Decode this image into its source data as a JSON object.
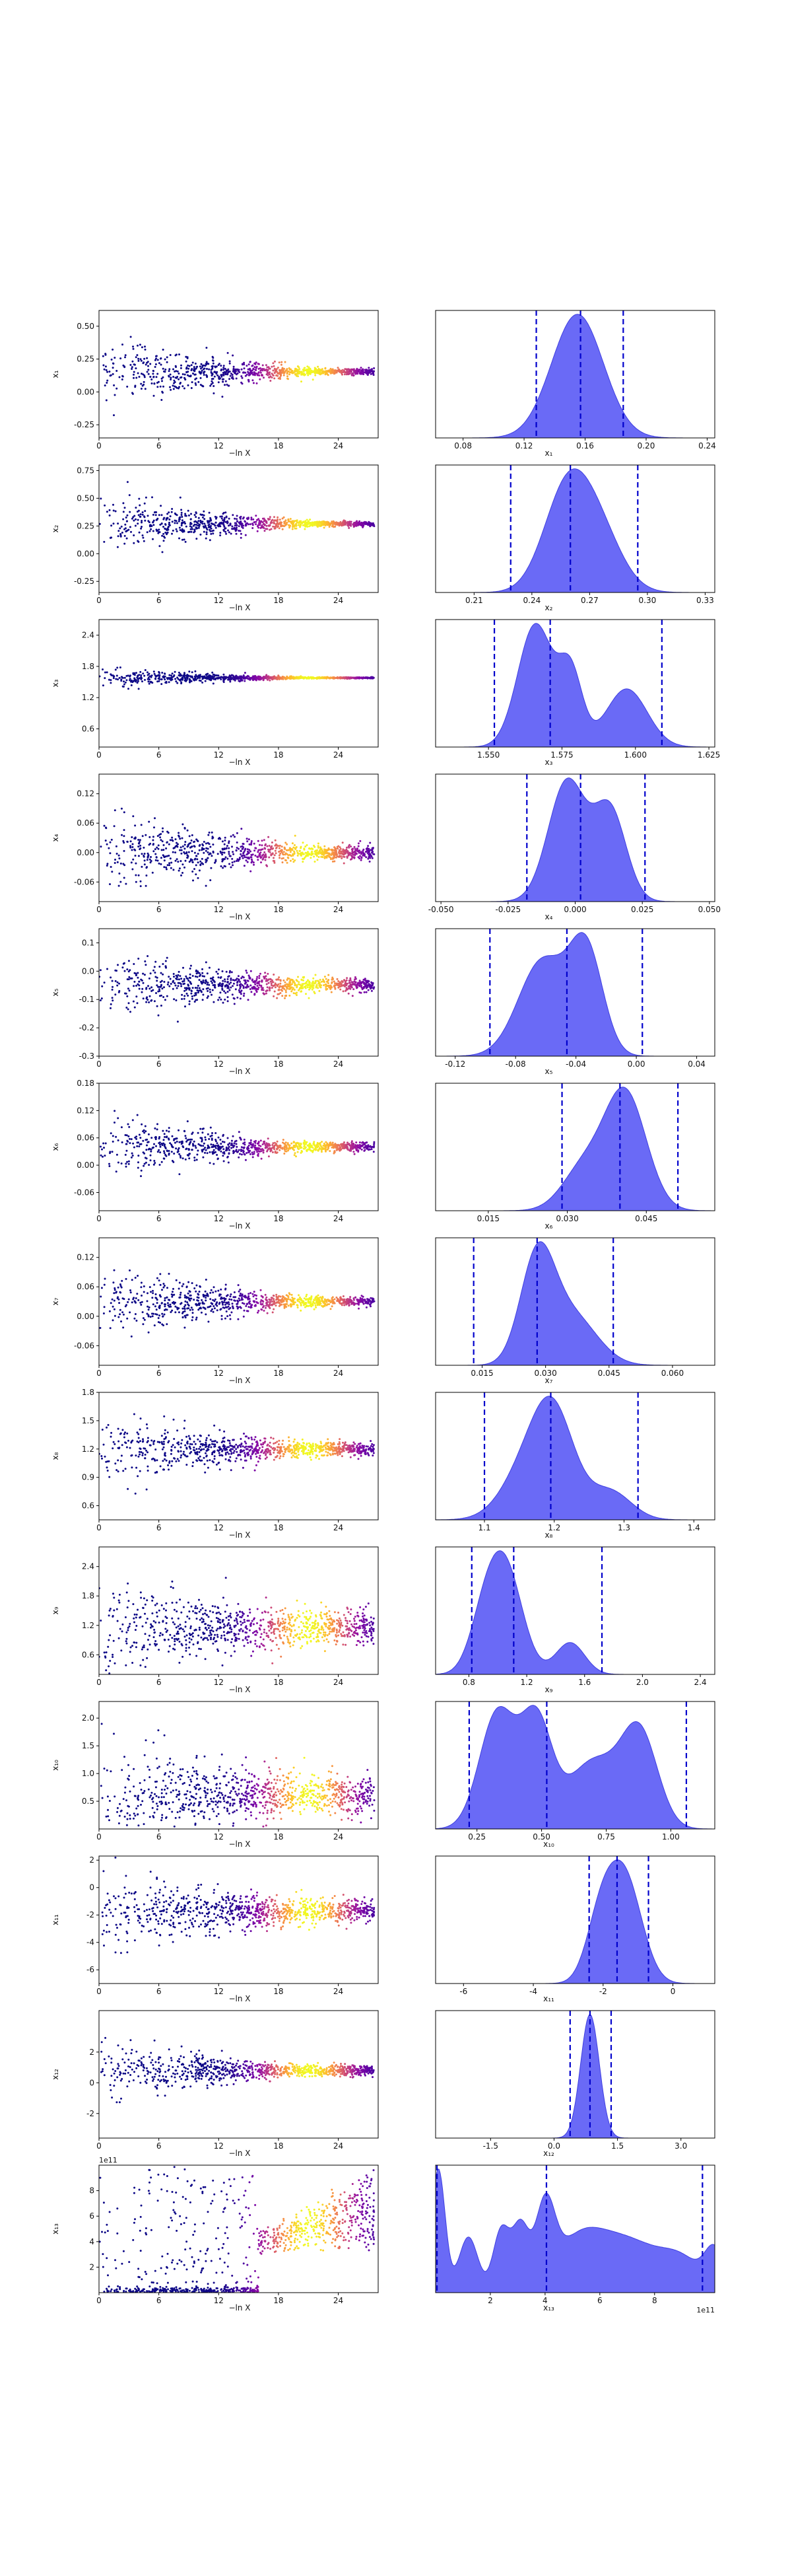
{
  "chart_data": {
    "type": "scatter",
    "trace_xlabel": "−ln X",
    "trace_xticks": [
      0,
      6,
      12,
      18,
      24
    ],
    "trace_xlim": [
      0,
      28
    ],
    "colormap": "plasma",
    "kde_fill_color": "#5a5af5",
    "quantile_line_color": "#0000cc",
    "panels": [
      {
        "param": "x1",
        "trace_ylabel": "x₁",
        "trace_yticks": [
          "-0.25",
          "0.00",
          "0.25",
          "0.50"
        ],
        "trace_ylim": [
          -0.35,
          0.62
        ],
        "center": 0.155,
        "width0": 0.2,
        "width_end": 0.02,
        "kde_xlabel": "x₁",
        "kde_xticks": [
          "0.08",
          "0.12",
          "0.16",
          "0.20",
          "0.24"
        ],
        "kde_xlim": [
          0.062,
          0.245
        ],
        "kde_peaks": [
          [
            0.155,
            0.017,
            1.0
          ]
        ],
        "quantiles": [
          0.128,
          0.157,
          0.185
        ]
      },
      {
        "param": "x2",
        "trace_ylabel": "x₂",
        "trace_yticks": [
          "-0.25",
          "0.00",
          "0.25",
          "0.50",
          "0.75"
        ],
        "trace_ylim": [
          -0.35,
          0.8
        ],
        "center": 0.27,
        "width0": 0.2,
        "width_end": 0.02,
        "kde_xlabel": "x₂",
        "kde_xticks": [
          "0.21",
          "0.24",
          "0.27",
          "0.30",
          "0.33"
        ],
        "kde_xlim": [
          0.19,
          0.335
        ],
        "kde_peaks": [
          [
            0.258,
            0.012,
            1.0
          ],
          [
            0.275,
            0.012,
            0.55
          ]
        ],
        "quantiles": [
          0.229,
          0.26,
          0.295
        ]
      },
      {
        "param": "x3",
        "trace_ylabel": "x₃",
        "trace_yticks": [
          "0.6",
          "1.2",
          "1.8",
          "2.4"
        ],
        "trace_ylim": [
          0.25,
          2.7
        ],
        "center": 1.58,
        "width0": 0.15,
        "width_end": 0.01,
        "kde_xlabel": "x₃",
        "kde_xticks": [
          "1.550",
          "1.575",
          "1.600",
          "1.625"
        ],
        "kde_xlim": [
          1.532,
          1.627
        ],
        "kde_peaks": [
          [
            1.566,
            0.006,
            0.95
          ],
          [
            1.578,
            0.004,
            0.55
          ],
          [
            1.597,
            0.007,
            0.45
          ]
        ],
        "quantiles": [
          1.552,
          1.571,
          1.609
        ]
      },
      {
        "param": "x4",
        "trace_ylabel": "x₄",
        "trace_yticks": [
          "-0.06",
          "0.00",
          "0.06",
          "0.12"
        ],
        "trace_ylim": [
          -0.1,
          0.16
        ],
        "center": 0.0,
        "width0": 0.06,
        "width_end": 0.012,
        "kde_xlabel": "x₄",
        "kde_xticks": [
          "-0.050",
          "-0.025",
          "0.000",
          "0.025",
          "0.050"
        ],
        "kde_xlim": [
          -0.052,
          0.052
        ],
        "kde_peaks": [
          [
            -0.003,
            0.007,
            1.0
          ],
          [
            0.013,
            0.006,
            0.75
          ]
        ],
        "quantiles": [
          -0.018,
          0.002,
          0.026
        ]
      },
      {
        "param": "x5",
        "trace_ylabel": "x₅",
        "trace_yticks": [
          "-0.3",
          "-0.2",
          "-0.1",
          "0.0",
          "0.1"
        ],
        "trace_ylim": [
          -0.3,
          0.15
        ],
        "center": -0.05,
        "width0": 0.08,
        "width_end": 0.02,
        "kde_xlabel": "x₅",
        "kde_xticks": [
          "-0.12",
          "-0.08",
          "-0.04",
          "0.00",
          "0.04"
        ],
        "kde_xlim": [
          -0.133,
          0.052
        ],
        "kde_peaks": [
          [
            -0.062,
            0.016,
            0.8
          ],
          [
            -0.033,
            0.011,
            0.85
          ]
        ],
        "quantiles": [
          -0.097,
          -0.046,
          0.004
        ]
      },
      {
        "param": "x6",
        "trace_ylabel": "x₆",
        "trace_yticks": [
          "-0.06",
          "0.00",
          "0.06",
          "0.12",
          "0.18"
        ],
        "trace_ylim": [
          -0.1,
          0.18
        ],
        "center": 0.04,
        "width0": 0.05,
        "width_end": 0.008,
        "kde_xlabel": "x₆",
        "kde_xticks": [
          "0.015",
          "0.030",
          "0.045"
        ],
        "kde_xlim": [
          0.005,
          0.058
        ],
        "kde_peaks": [
          [
            0.041,
            0.004,
            1.0
          ],
          [
            0.033,
            0.004,
            0.35
          ]
        ],
        "quantiles": [
          0.029,
          0.04,
          0.051
        ]
      },
      {
        "param": "x7",
        "trace_ylabel": "x₇",
        "trace_yticks": [
          "-0.06",
          "0.00",
          "0.06",
          "0.12"
        ],
        "trace_ylim": [
          -0.1,
          0.16
        ],
        "center": 0.03,
        "width0": 0.05,
        "width_end": 0.008,
        "kde_xlabel": "x₇",
        "kde_xticks": [
          "0.015",
          "0.030",
          "0.045",
          "0.060"
        ],
        "kde_xlim": [
          0.004,
          0.07
        ],
        "kde_peaks": [
          [
            0.028,
            0.004,
            1.0
          ],
          [
            0.036,
            0.006,
            0.5
          ]
        ],
        "quantiles": [
          0.013,
          0.028,
          0.046
        ]
      },
      {
        "param": "x8",
        "trace_ylabel": "x₈",
        "trace_yticks": [
          "0.6",
          "0.9",
          "1.2",
          "1.5",
          "1.8"
        ],
        "trace_ylim": [
          0.45,
          1.8
        ],
        "center": 1.2,
        "width0": 0.25,
        "width_end": 0.06,
        "kde_xlabel": "x₈",
        "kde_xticks": [
          "1.1",
          "1.2",
          "1.3",
          "1.4"
        ],
        "kde_xlim": [
          1.03,
          1.43
        ],
        "kde_peaks": [
          [
            1.2,
            0.03,
            1.0
          ],
          [
            1.16,
            0.035,
            0.5
          ],
          [
            1.28,
            0.03,
            0.3
          ]
        ],
        "quantiles": [
          1.1,
          1.195,
          1.32
        ]
      },
      {
        "param": "x9",
        "trace_ylabel": "x₉",
        "trace_yticks": [
          "0.6",
          "1.2",
          "1.8",
          "2.4"
        ],
        "trace_ylim": [
          0.2,
          2.8
        ],
        "center": 1.15,
        "width0": 0.5,
        "width_end": 0.3,
        "kde_xlabel": "x₉",
        "kde_xticks": [
          "0.8",
          "1.2",
          "1.6",
          "2.0",
          "2.4"
        ],
        "kde_xlim": [
          0.57,
          2.5
        ],
        "kde_peaks": [
          [
            1.05,
            0.12,
            1.0
          ],
          [
            1.5,
            0.1,
            0.3
          ],
          [
            0.9,
            0.1,
            0.4
          ]
        ],
        "quantiles": [
          0.82,
          1.11,
          1.72
        ]
      },
      {
        "param": "x10",
        "trace_ylabel": "x₁₀",
        "trace_yticks": [
          "0.5",
          "1.0",
          "1.5",
          "2.0"
        ],
        "trace_ylim": [
          0.0,
          2.3
        ],
        "center": 0.6,
        "width0": 0.5,
        "width_end": 0.28,
        "kde_xlabel": "x₁₀",
        "kde_xticks": [
          "0.25",
          "0.50",
          "0.75",
          "1.00"
        ],
        "kde_xlim": [
          0.09,
          1.17
        ],
        "kde_peaks": [
          [
            0.33,
            0.07,
            0.95
          ],
          [
            0.48,
            0.06,
            0.85
          ],
          [
            0.7,
            0.1,
            0.55
          ],
          [
            0.88,
            0.07,
            0.75
          ]
        ],
        "quantiles": [
          0.22,
          0.52,
          1.06
        ]
      },
      {
        "param": "x11",
        "trace_ylabel": "x₁₁",
        "trace_yticks": [
          "-6",
          "-4",
          "-2",
          "0",
          "2"
        ],
        "trace_ylim": [
          -7,
          2.3
        ],
        "center": -1.7,
        "width0": 1.8,
        "width_end": 0.7,
        "kde_xlabel": "x₁₁",
        "kde_xticks": [
          "-6",
          "-4",
          "-2",
          "0"
        ],
        "kde_xlim": [
          -6.8,
          1.2
        ],
        "kde_peaks": [
          [
            -1.4,
            0.5,
            1.0
          ],
          [
            -2.1,
            0.4,
            0.5
          ]
        ],
        "quantiles": [
          -2.4,
          -1.6,
          -0.7
        ]
      },
      {
        "param": "x12",
        "trace_ylabel": "x₁₂",
        "trace_yticks": [
          "-2",
          "0",
          "2"
        ],
        "trace_ylim": [
          -3.6,
          4.7
        ],
        "center": 0.8,
        "width0": 1.3,
        "width_end": 0.3,
        "kde_xlabel": "x₁₂",
        "kde_xticks": [
          "-1.5",
          "0.0",
          "1.5",
          "3.0"
        ],
        "kde_xlim": [
          -2.8,
          3.8
        ],
        "kde_peaks": [
          [
            0.85,
            0.22,
            1.0
          ]
        ],
        "quantiles": [
          0.38,
          0.85,
          1.35
        ]
      },
      {
        "param": "x13",
        "trace_ylabel": "x₁₃",
        "trace_yticks": [
          "2",
          "4",
          "6",
          "8"
        ],
        "trace_ylim": [
          0.0,
          10.0
        ],
        "center": 3.0,
        "width0": 3.0,
        "width_end": 3.0,
        "trace_offset": "1e11",
        "kde_xlabel": "x₁₃",
        "kde_xticks": [
          "2",
          "4",
          "6",
          "8"
        ],
        "kde_xlim": [
          0.0,
          10.2
        ],
        "kde_offset": "1e11",
        "kde_peaks": [
          [
            0.1,
            0.25,
            1.0
          ],
          [
            1.2,
            0.35,
            0.45
          ],
          [
            2.4,
            0.3,
            0.5
          ],
          [
            3.1,
            0.3,
            0.5
          ],
          [
            4.0,
            0.35,
            0.6
          ],
          [
            5.3,
            1.0,
            0.45
          ],
          [
            7.2,
            1.0,
            0.35
          ],
          [
            9.0,
            0.8,
            0.25
          ],
          [
            10.2,
            0.35,
            0.3
          ]
        ],
        "quantiles": [
          0.05,
          4.05,
          9.75
        ]
      }
    ]
  }
}
